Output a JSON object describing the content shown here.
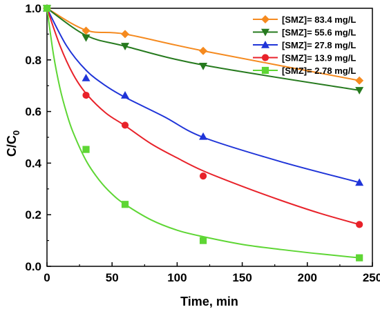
{
  "chart_data": {
    "type": "scatter",
    "xlabel": "Time, min",
    "ylabel_main": "C/C",
    "ylabel_sub": "0",
    "xlim": [
      0,
      250
    ],
    "ylim": [
      0,
      1.0
    ],
    "xticks": [
      "0",
      "50",
      "100",
      "150",
      "200",
      "250"
    ],
    "yticks": [
      "0.0",
      "0.2",
      "0.4",
      "0.6",
      "0.8",
      "1.0"
    ],
    "grid": false,
    "legend_position": "top-right",
    "series": [
      {
        "name": "[SMZ]= 83.4 mg/L",
        "color": "#f58a1f",
        "marker": "diamond",
        "x": [
          0,
          30,
          60,
          120,
          240
        ],
        "y": [
          1.0,
          0.913,
          0.9,
          0.835,
          0.72
        ],
        "fit_x": [
          0,
          30,
          60,
          120,
          240
        ],
        "fit_y": [
          1.0,
          0.915,
          0.9,
          0.835,
          0.72
        ]
      },
      {
        "name": "[SMZ]= 55.6 mg/L",
        "color": "#267a1e",
        "marker": "triangle-down",
        "x": [
          0,
          30,
          60,
          120,
          240
        ],
        "y": [
          1.0,
          0.886,
          0.853,
          0.776,
          0.682
        ],
        "fit_x": [
          0,
          30,
          60,
          120,
          240
        ],
        "fit_y": [
          1.0,
          0.895,
          0.853,
          0.78,
          0.682
        ]
      },
      {
        "name": "[SMZ]= 27.8 mg/L",
        "color": "#1f34d8",
        "marker": "triangle-up",
        "x": [
          0,
          30,
          60,
          120,
          240
        ],
        "y": [
          1.0,
          0.73,
          0.663,
          0.503,
          0.325
        ],
        "fit_x": [
          0,
          15,
          30,
          45,
          60,
          90,
          120,
          180,
          240
        ],
        "fit_y": [
          1.0,
          0.855,
          0.76,
          0.7,
          0.655,
          0.58,
          0.5,
          0.405,
          0.325
        ]
      },
      {
        "name": "[SMZ]= 13.9 mg/L",
        "color": "#e8222a",
        "marker": "circle",
        "x": [
          0,
          30,
          60,
          120,
          240
        ],
        "y": [
          1.0,
          0.663,
          0.547,
          0.35,
          0.162
        ],
        "fit_x": [
          0,
          10,
          20,
          30,
          45,
          60,
          80,
          100,
          120,
          150,
          180,
          210,
          240
        ],
        "fit_y": [
          1.0,
          0.855,
          0.745,
          0.67,
          0.595,
          0.545,
          0.475,
          0.42,
          0.37,
          0.31,
          0.255,
          0.205,
          0.162
        ]
      },
      {
        "name": "[SMZ]= 2.78 mg/L",
        "color": "#5ed634",
        "marker": "square",
        "x": [
          0,
          30,
          60,
          120,
          240
        ],
        "y": [
          1.0,
          0.453,
          0.24,
          0.1,
          0.033
        ],
        "fit_x": [
          0,
          5,
          10,
          15,
          20,
          30,
          40,
          50,
          60,
          80,
          100,
          120,
          150,
          180,
          210,
          240
        ],
        "fit_y": [
          1.0,
          0.82,
          0.69,
          0.595,
          0.52,
          0.41,
          0.335,
          0.28,
          0.24,
          0.18,
          0.14,
          0.115,
          0.085,
          0.065,
          0.048,
          0.033
        ]
      }
    ]
  }
}
